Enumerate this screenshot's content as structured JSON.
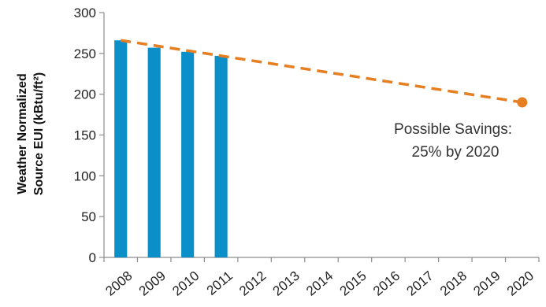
{
  "chart_data": {
    "type": "bar",
    "categories": [
      "2008",
      "2009",
      "2010",
      "2011",
      "2012",
      "2013",
      "2014",
      "2015",
      "2016",
      "2017",
      "2018",
      "2019",
      "2020"
    ],
    "values": [
      266,
      257,
      252,
      247,
      null,
      null,
      null,
      null,
      null,
      null,
      null,
      null,
      null
    ],
    "ylabel_line1": "Weather Normalized",
    "ylabel_line2": "Source EUI (kBtu/ft²)",
    "ylim": [
      0,
      300
    ],
    "yticks": [
      0,
      50,
      100,
      150,
      200,
      250,
      300
    ],
    "grid": false,
    "trend": {
      "start": {
        "x": "2008",
        "y": 266
      },
      "end": {
        "x": "2020",
        "y": 190
      },
      "style": "dashed"
    },
    "annotation_lines": [
      "Possible Savings:",
      "25% by 2020"
    ],
    "colors": {
      "bar": "#0a8fc8",
      "trend": "#e67e22"
    }
  }
}
